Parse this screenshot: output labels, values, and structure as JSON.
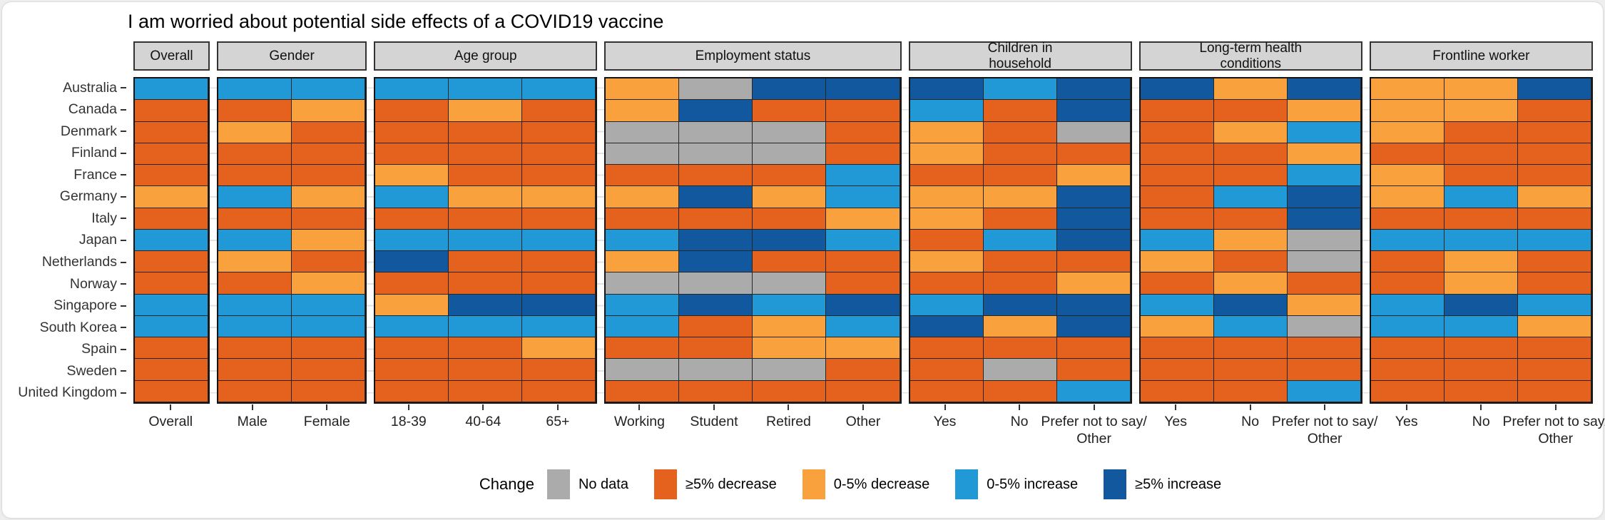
{
  "title": "I am worried about potential side effects of a COVID19 vaccine",
  "legend": {
    "label": "Change",
    "items": [
      {
        "key": "G",
        "label": "No data",
        "color": "#ababab"
      },
      {
        "key": "D5",
        "label": "≥5% decrease",
        "color": "#e4621e"
      },
      {
        "key": "D0",
        "label": "0-5% decrease",
        "color": "#f9a13c"
      },
      {
        "key": "I0",
        "label": "0-5% increase",
        "color": "#2199d6"
      },
      {
        "key": "I5",
        "label": "≥5% increase",
        "color": "#11589f"
      }
    ]
  },
  "chart_data": {
    "type": "heatmap",
    "title": "I am worried about potential side effects of a COVID19 vaccine",
    "legend_position": "bottom",
    "code_legend": {
      "G": "No data",
      "D5": "≥5% decrease",
      "D0": "0-5% decrease",
      "I0": "0-5% increase",
      "I5": "≥5% increase"
    },
    "colors": {
      "G": "#ababab",
      "D5": "#e4621e",
      "D0": "#f9a13c",
      "I0": "#2199d6",
      "I5": "#11589f"
    },
    "rows": [
      "Australia",
      "Canada",
      "Denmark",
      "Finland",
      "France",
      "Germany",
      "Italy",
      "Japan",
      "Netherlands",
      "Norway",
      "Singapore",
      "South Korea",
      "Spain",
      "Sweden",
      "United Kingdom"
    ],
    "facets": [
      {
        "label": "Overall",
        "columns": [
          "Overall"
        ],
        "cells": [
          [
            "I0"
          ],
          [
            "D5"
          ],
          [
            "D5"
          ],
          [
            "D5"
          ],
          [
            "D5"
          ],
          [
            "D0"
          ],
          [
            "D5"
          ],
          [
            "I0"
          ],
          [
            "D5"
          ],
          [
            "D5"
          ],
          [
            "I0"
          ],
          [
            "I0"
          ],
          [
            "D5"
          ],
          [
            "D5"
          ],
          [
            "D5"
          ]
        ]
      },
      {
        "label": "Gender",
        "columns": [
          "Male",
          "Female"
        ],
        "cells": [
          [
            "I0",
            "I0"
          ],
          [
            "D5",
            "D0"
          ],
          [
            "D0",
            "D5"
          ],
          [
            "D5",
            "D5"
          ],
          [
            "D5",
            "D5"
          ],
          [
            "I0",
            "D0"
          ],
          [
            "D5",
            "D5"
          ],
          [
            "I0",
            "D0"
          ],
          [
            "D0",
            "D5"
          ],
          [
            "D5",
            "D0"
          ],
          [
            "I0",
            "I0"
          ],
          [
            "I0",
            "I0"
          ],
          [
            "D5",
            "D5"
          ],
          [
            "D5",
            "D5"
          ],
          [
            "D5",
            "D5"
          ]
        ]
      },
      {
        "label": "Age group",
        "columns": [
          "18-39",
          "40-64",
          "65+"
        ],
        "cells": [
          [
            "I0",
            "I0",
            "I0"
          ],
          [
            "D5",
            "D0",
            "D5"
          ],
          [
            "D5",
            "D5",
            "D5"
          ],
          [
            "D5",
            "D5",
            "D5"
          ],
          [
            "D0",
            "D5",
            "D5"
          ],
          [
            "I0",
            "D0",
            "D0"
          ],
          [
            "D5",
            "D5",
            "D5"
          ],
          [
            "I0",
            "I0",
            "I0"
          ],
          [
            "I5",
            "D5",
            "D5"
          ],
          [
            "D5",
            "D5",
            "D5"
          ],
          [
            "D0",
            "I5",
            "I5"
          ],
          [
            "I0",
            "I0",
            "I0"
          ],
          [
            "D5",
            "D5",
            "D0"
          ],
          [
            "D5",
            "D5",
            "D5"
          ],
          [
            "D5",
            "D5",
            "D5"
          ]
        ]
      },
      {
        "label": "Employment status",
        "columns": [
          "Working",
          "Student",
          "Retired",
          "Other"
        ],
        "cells": [
          [
            "D0",
            "G",
            "I5",
            "I5"
          ],
          [
            "D0",
            "I5",
            "D5",
            "D5"
          ],
          [
            "G",
            "G",
            "G",
            "D5"
          ],
          [
            "G",
            "G",
            "G",
            "D5"
          ],
          [
            "D5",
            "D5",
            "D5",
            "I0"
          ],
          [
            "D0",
            "I5",
            "D0",
            "I0"
          ],
          [
            "D5",
            "D5",
            "D5",
            "D0"
          ],
          [
            "I0",
            "I5",
            "I5",
            "I0"
          ],
          [
            "D0",
            "I5",
            "D5",
            "D5"
          ],
          [
            "G",
            "G",
            "G",
            "D5"
          ],
          [
            "I0",
            "I5",
            "I0",
            "I5"
          ],
          [
            "I0",
            "D5",
            "D0",
            "I0"
          ],
          [
            "D5",
            "D5",
            "D0",
            "D0"
          ],
          [
            "G",
            "G",
            "G",
            "D5"
          ],
          [
            "D5",
            "D5",
            "D5",
            "D5"
          ]
        ]
      },
      {
        "label": "Children in\nhousehold",
        "columns": [
          "Yes",
          "No",
          "Prefer not to say/\nOther"
        ],
        "cells": [
          [
            "I5",
            "I0",
            "I5"
          ],
          [
            "I0",
            "D5",
            "I5"
          ],
          [
            "D0",
            "D5",
            "G"
          ],
          [
            "D0",
            "D5",
            "D5"
          ],
          [
            "D5",
            "D5",
            "D0"
          ],
          [
            "D0",
            "D0",
            "I5"
          ],
          [
            "D0",
            "D5",
            "I5"
          ],
          [
            "D5",
            "I0",
            "I5"
          ],
          [
            "D0",
            "D5",
            "D5"
          ],
          [
            "D5",
            "D5",
            "D0"
          ],
          [
            "I0",
            "I5",
            "I5"
          ],
          [
            "I5",
            "D0",
            "I5"
          ],
          [
            "D5",
            "D5",
            "D5"
          ],
          [
            "D5",
            "G",
            "D5"
          ],
          [
            "D5",
            "D5",
            "I0"
          ]
        ]
      },
      {
        "label": "Long-term health\nconditions",
        "columns": [
          "Yes",
          "No",
          "Prefer not to say/\nOther"
        ],
        "cells": [
          [
            "I5",
            "D0",
            "I5"
          ],
          [
            "D5",
            "D5",
            "D0"
          ],
          [
            "D5",
            "D0",
            "I0"
          ],
          [
            "D5",
            "D5",
            "D0"
          ],
          [
            "D5",
            "D5",
            "I0"
          ],
          [
            "D5",
            "I0",
            "I5"
          ],
          [
            "D5",
            "D5",
            "I5"
          ],
          [
            "I0",
            "D0",
            "G"
          ],
          [
            "D0",
            "D5",
            "G"
          ],
          [
            "D5",
            "D0",
            "D5"
          ],
          [
            "I0",
            "I5",
            "D0"
          ],
          [
            "D0",
            "I0",
            "G"
          ],
          [
            "D5",
            "D5",
            "D5"
          ],
          [
            "D5",
            "D5",
            "D5"
          ],
          [
            "D5",
            "D5",
            "I0"
          ]
        ]
      },
      {
        "label": "Frontline worker",
        "columns": [
          "Yes",
          "No",
          "Prefer not to say/\nOther"
        ],
        "cells": [
          [
            "D0",
            "D0",
            "I5"
          ],
          [
            "D0",
            "D0",
            "D5"
          ],
          [
            "D0",
            "D5",
            "D5"
          ],
          [
            "D5",
            "D5",
            "D5"
          ],
          [
            "D0",
            "D5",
            "D5"
          ],
          [
            "D0",
            "I0",
            "D0"
          ],
          [
            "D5",
            "D5",
            "D5"
          ],
          [
            "I0",
            "I0",
            "I0"
          ],
          [
            "D5",
            "D0",
            "D5"
          ],
          [
            "D5",
            "D0",
            "D5"
          ],
          [
            "I0",
            "I5",
            "I0"
          ],
          [
            "I0",
            "I0",
            "D0"
          ],
          [
            "D5",
            "D5",
            "D5"
          ],
          [
            "D5",
            "D5",
            "D5"
          ],
          [
            "D5",
            "D5",
            "D5"
          ]
        ]
      }
    ]
  }
}
